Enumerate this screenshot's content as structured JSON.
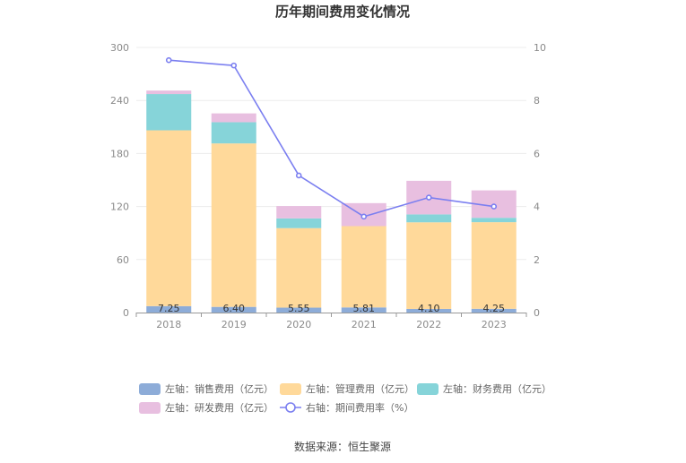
{
  "chart_data": {
    "type": "bar",
    "title": "历年期间费用变化情况",
    "categories": [
      "2018",
      "2019",
      "2020",
      "2021",
      "2022",
      "2023"
    ],
    "left_axis": {
      "min": 0,
      "max": 300,
      "ticks": [
        "0",
        "60",
        "120",
        "180",
        "240",
        "300"
      ]
    },
    "right_axis": {
      "min": 0,
      "max": 10,
      "ticks": [
        "0",
        "2",
        "4",
        "6",
        "8",
        "10"
      ]
    },
    "stacked": true,
    "series": [
      {
        "name": "左轴：销售费用（亿元）",
        "color": "#8dacd8",
        "values": [
          7.25,
          6.4,
          5.55,
          5.81,
          4.1,
          4.25
        ]
      },
      {
        "name": "左轴：管理费用（亿元）",
        "color": "#ffd99a",
        "values": [
          199,
          185,
          90,
          92,
          98,
          98
        ]
      },
      {
        "name": "左轴：财务费用（亿元）",
        "color": "#86d4d9",
        "values": [
          41,
          24,
          11,
          0,
          9,
          5
        ]
      },
      {
        "name": "左轴：研发费用（亿元）",
        "color": "#e8bfe0",
        "values": [
          4,
          10,
          14,
          26,
          38,
          31
        ]
      }
    ],
    "line_series": {
      "name": "右轴：期间费用率（%）",
      "color": "#7b7ff0",
      "axis": "right",
      "values": [
        9.52,
        9.32,
        5.17,
        3.62,
        4.34,
        4.0
      ]
    },
    "data_labels": [
      "7.25",
      "6.40",
      "5.55",
      "5.81",
      "4.10",
      "4.25"
    ],
    "grid": true,
    "legend_position": "bottom"
  },
  "source_text": "数据来源：恒生聚源"
}
